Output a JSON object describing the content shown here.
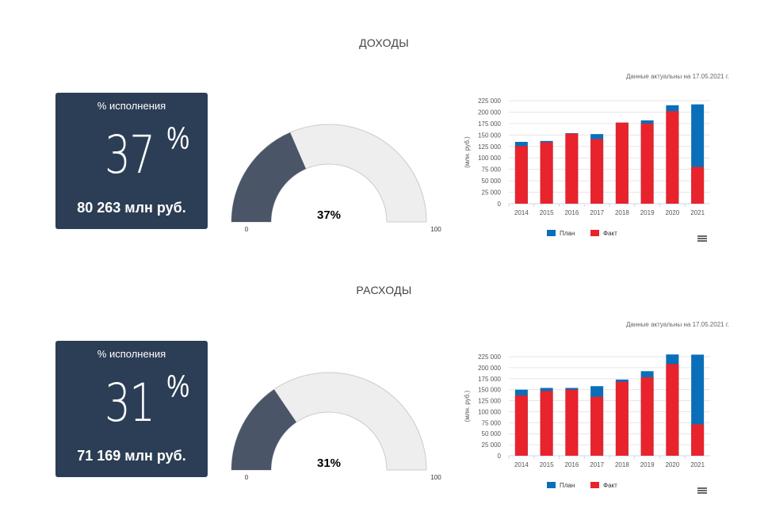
{
  "sections": [
    {
      "title": "ДОХОДЫ",
      "card_label": "% исполнения",
      "percent_value": "37",
      "percent_sign": "%",
      "amount": "80 263 млн руб.",
      "gauge": {
        "value": 37,
        "label": "37%",
        "min": "0",
        "max": "100"
      },
      "note": "Данные актуальны на 17.05.2021 г."
    },
    {
      "title": "РАСХОДЫ",
      "card_label": "% исполнения",
      "percent_value": "31",
      "percent_sign": "%",
      "amount": "71 169 млн руб.",
      "gauge": {
        "value": 31,
        "label": "31%",
        "min": "0",
        "max": "100"
      },
      "note": "Данные актуальны на 17.05.2021 г."
    }
  ],
  "colors": {
    "card": "#2c3e55",
    "gauge_fill": "#4a5568",
    "gauge_bg": "#eeeeee",
    "plan": "#0a6fb8",
    "fact": "#e8232c"
  },
  "chart_data": [
    {
      "type": "bar",
      "title": "ДОХОДЫ",
      "ylabel": "(млн. руб.)",
      "categories": [
        "2014",
        "2015",
        "2016",
        "2017",
        "2018",
        "2019",
        "2020",
        "2021"
      ],
      "ylim": [
        0,
        225000
      ],
      "yticks": [
        "0",
        "25 000",
        "50 000",
        "75 000",
        "100 000",
        "125 000",
        "150 000",
        "175 000",
        "200 000",
        "225 000"
      ],
      "legend": "bottom-center",
      "series": [
        {
          "name": "План",
          "values": [
            135000,
            137000,
            154000,
            152000,
            177000,
            182000,
            215000,
            216900
          ]
        },
        {
          "name": "Факт",
          "values": [
            126000,
            134000,
            153000,
            141000,
            177000,
            175000,
            202000,
            80263
          ]
        }
      ]
    },
    {
      "type": "bar",
      "title": "РАСХОДЫ",
      "ylabel": "(млн. руб.)",
      "categories": [
        "2014",
        "2015",
        "2016",
        "2017",
        "2018",
        "2019",
        "2020",
        "2021"
      ],
      "ylim": [
        0,
        225000
      ],
      "yticks": [
        "0",
        "25 000",
        "50 000",
        "75 000",
        "100 000",
        "125 000",
        "150 000",
        "175 000",
        "200 000",
        "225 000"
      ],
      "legend": "bottom-center",
      "series": [
        {
          "name": "План",
          "values": [
            150000,
            154000,
            154000,
            158000,
            173000,
            192000,
            230000,
            229600
          ]
        },
        {
          "name": "Факт",
          "values": [
            137000,
            147000,
            150000,
            134000,
            168000,
            178000,
            208000,
            71169
          ]
        }
      ]
    }
  ]
}
